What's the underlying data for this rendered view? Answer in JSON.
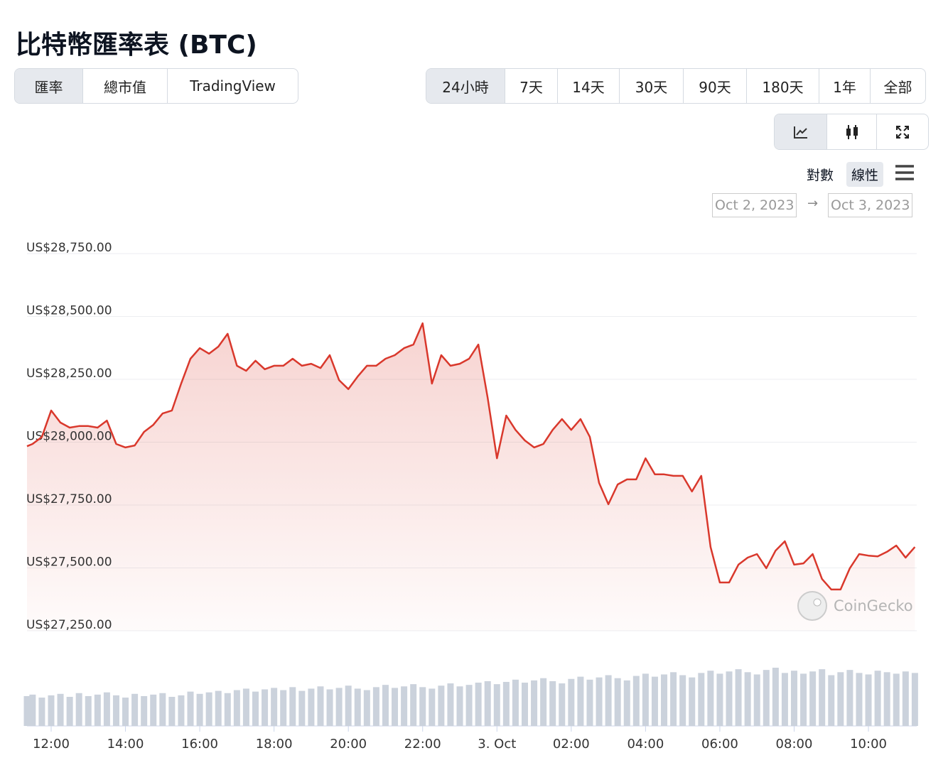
{
  "header": {
    "title": "比特幣匯率表 (BTC)"
  },
  "tabs": {
    "items": [
      "匯率",
      "總市值",
      "TradingView"
    ],
    "active": 0
  },
  "ranges": {
    "items": [
      "24小時",
      "7天",
      "14天",
      "30天",
      "90天",
      "180天",
      "1年",
      "全部"
    ],
    "active": 0
  },
  "scales": {
    "items": [
      "對數",
      "線性"
    ],
    "active": 1
  },
  "date_range": {
    "from": "Oct 2, 2023",
    "separator": "→",
    "to": "Oct 3, 2023"
  },
  "watermark": "CoinGecko",
  "chart_data": {
    "type": "line",
    "x": [
      11.35,
      11.5,
      11.75,
      12,
      12.25,
      12.5,
      12.75,
      13,
      13.25,
      13.5,
      13.75,
      14,
      14.25,
      14.5,
      14.75,
      15,
      15.25,
      15.5,
      15.75,
      16,
      16.25,
      16.5,
      16.75,
      17,
      17.25,
      17.5,
      17.75,
      18,
      18.25,
      18.5,
      18.75,
      19,
      19.25,
      19.5,
      19.75,
      20,
      20.25,
      20.5,
      20.75,
      21,
      21.25,
      21.5,
      21.75,
      22,
      22.25,
      22.5,
      22.75,
      23,
      23.25,
      23.5,
      23.75,
      24,
      24.25,
      24.5,
      24.75,
      25,
      25.25,
      25.5,
      25.75,
      26,
      26.25,
      26.5,
      26.75,
      27,
      27.25,
      27.5,
      27.75,
      28,
      28.25,
      28.5,
      28.75,
      29,
      29.25,
      29.5,
      29.75,
      30,
      30.25,
      30.5,
      30.75,
      31,
      31.25,
      31.5,
      31.75,
      32,
      32.25,
      32.5,
      32.75,
      33,
      33.25,
      33.5,
      33.75,
      34,
      34.25,
      34.5,
      34.75,
      35,
      35.25
    ],
    "series": [
      {
        "color": "#d9382c",
        "values": [
          27984,
          27993,
          28021,
          28126,
          28078,
          28058,
          28064,
          28064,
          28058,
          28086,
          27993,
          27979,
          27987,
          28041,
          28069,
          28114,
          28126,
          28233,
          28332,
          28374,
          28352,
          28380,
          28431,
          28304,
          28284,
          28324,
          28290,
          28304,
          28304,
          28332,
          28304,
          28312,
          28295,
          28346,
          28247,
          28211,
          28261,
          28304,
          28304,
          28332,
          28346,
          28374,
          28388,
          28473,
          28233,
          28346,
          28304,
          28312,
          28332,
          28388,
          28177,
          27936,
          28106,
          28049,
          28007,
          27979,
          27993,
          28049,
          28092,
          28049,
          28092,
          28021,
          27838,
          27753,
          27832,
          27852,
          27852,
          27936,
          27872,
          27872,
          27866,
          27866,
          27804,
          27866,
          27583,
          27442,
          27442,
          27513,
          27541,
          27555,
          27499,
          27569,
          27606,
          27513,
          27518,
          27555,
          27456,
          27414,
          27414,
          27499,
          27555,
          27549,
          27546,
          27564,
          27589,
          27541,
          27583
        ]
      }
    ],
    "volume": {
      "color": "#cbd2dc",
      "values": [
        40,
        42,
        38,
        41,
        43,
        39,
        44,
        40,
        42,
        45,
        41,
        38,
        43,
        40,
        42,
        44,
        39,
        41,
        46,
        43,
        45,
        47,
        44,
        48,
        50,
        46,
        49,
        51,
        48,
        52,
        47,
        50,
        53,
        49,
        51,
        54,
        50,
        48,
        52,
        55,
        51,
        53,
        56,
        52,
        50,
        54,
        57,
        53,
        55,
        58,
        60,
        56,
        59,
        62,
        58,
        61,
        64,
        60,
        57,
        63,
        66,
        62,
        65,
        68,
        64,
        61,
        67,
        70,
        66,
        69,
        72,
        68,
        65,
        71,
        74,
        70,
        73,
        76,
        72,
        69,
        75,
        78,
        71,
        74,
        70,
        73,
        76,
        68,
        72,
        75,
        71,
        69,
        74,
        72,
        70,
        73,
        71
      ]
    },
    "xlim": [
      11.35,
      35.3
    ],
    "xticks": [
      {
        "value": 12,
        "label": "12:00"
      },
      {
        "value": 14,
        "label": "14:00"
      },
      {
        "value": 16,
        "label": "16:00"
      },
      {
        "value": 18,
        "label": "18:00"
      },
      {
        "value": 20,
        "label": "20:00"
      },
      {
        "value": 22,
        "label": "22:00"
      },
      {
        "value": 24,
        "label": "3. Oct"
      },
      {
        "value": 26,
        "label": "02:00"
      },
      {
        "value": 28,
        "label": "04:00"
      },
      {
        "value": 30,
        "label": "06:00"
      },
      {
        "value": 32,
        "label": "08:00"
      },
      {
        "value": 34,
        "label": "10:00"
      }
    ],
    "ylim": [
      27250,
      28750
    ],
    "yticks": [
      {
        "value": 27250,
        "label": "US$27,250.00"
      },
      {
        "value": 27500,
        "label": "US$27,500.00"
      },
      {
        "value": 27750,
        "label": "US$27,750.00"
      },
      {
        "value": 28000,
        "label": "US$28,000.00"
      },
      {
        "value": 28250,
        "label": "US$28,250.00"
      },
      {
        "value": 28500,
        "label": "US$28,500.00"
      },
      {
        "value": 28750,
        "label": "US$28,750.00"
      }
    ],
    "grid": true
  }
}
